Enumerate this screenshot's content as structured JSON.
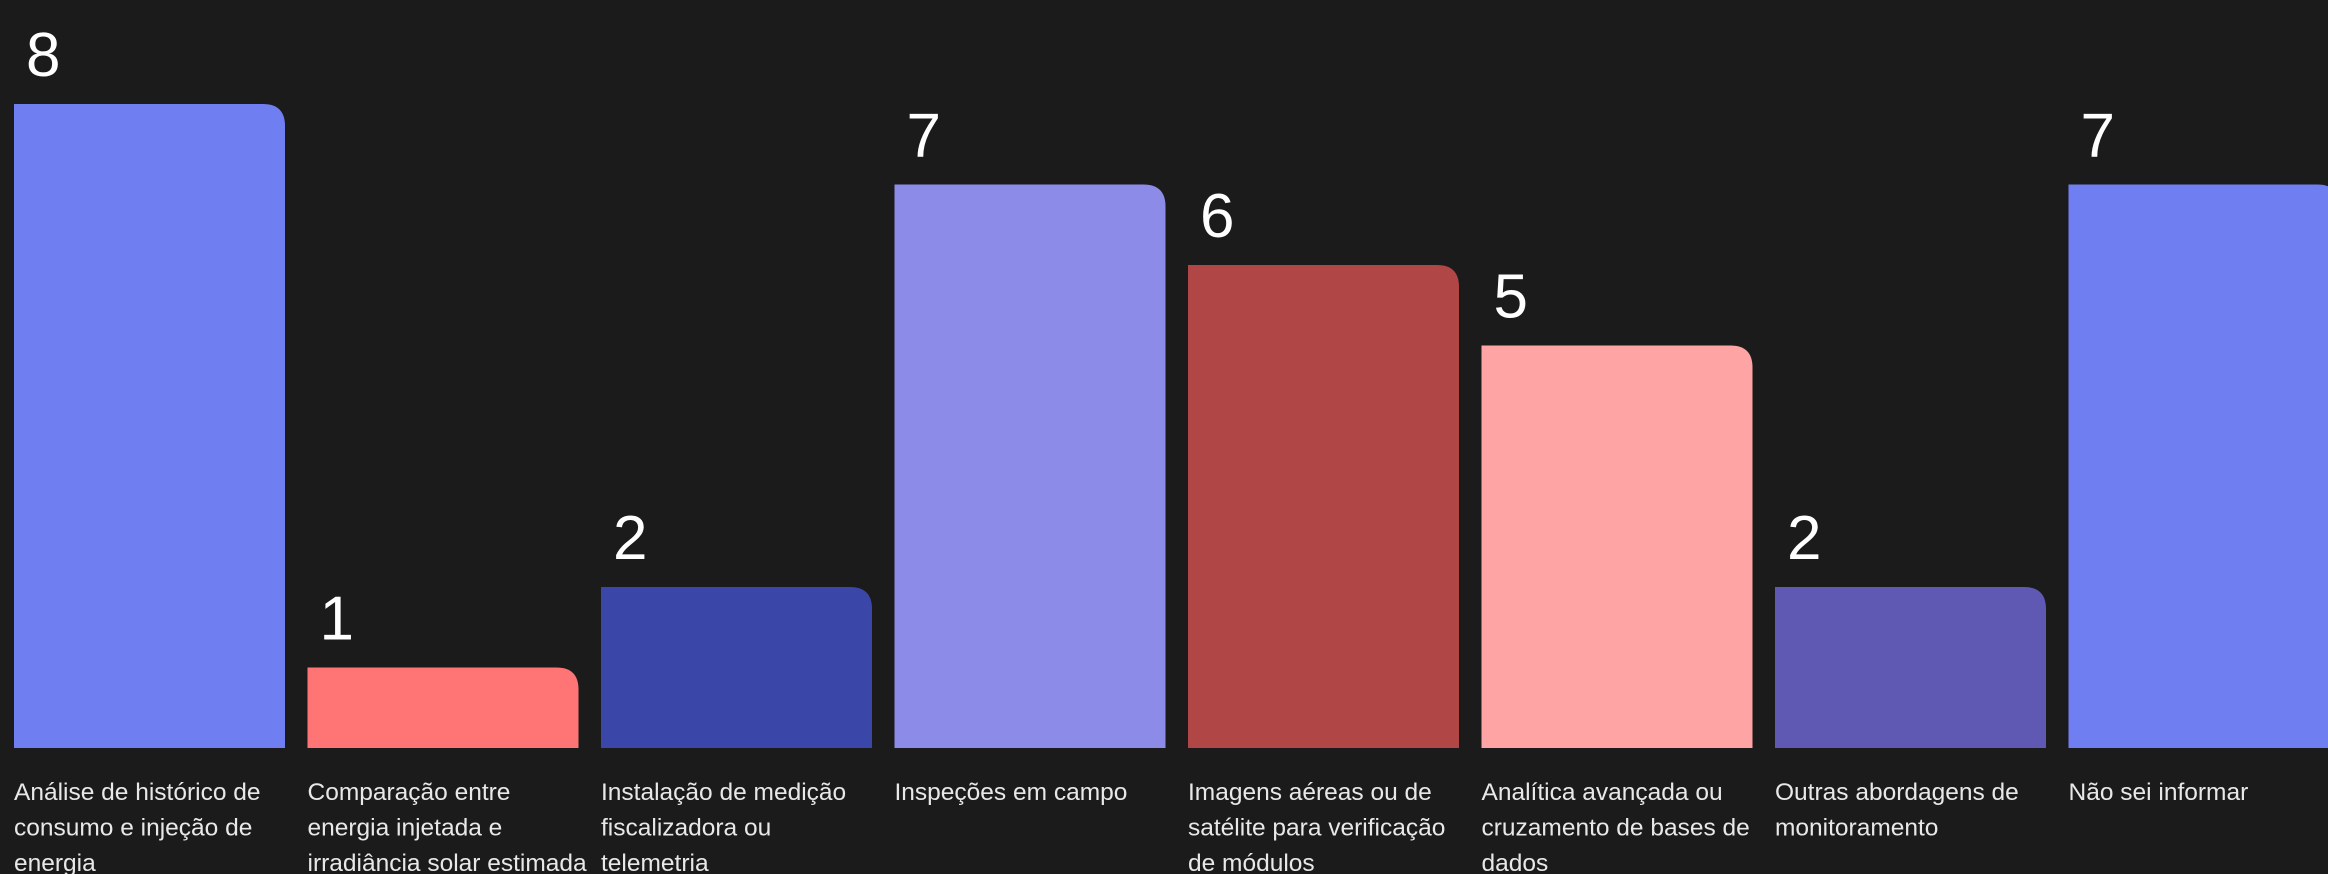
{
  "chart_data": {
    "type": "bar",
    "categories": [
      "Análise de histórico de consumo e injeção de energia",
      "Comparação entre energia injetada e irradiância solar estimada",
      "Instalação de medição fiscalizadora ou telemetria",
      "Inspeções em campo",
      "Imagens aéreas ou de satélite para verificação de módulos",
      "Analítica avançada ou cruzamento de bases de dados",
      "Outras abordagens de monitoramento",
      "Não sei informar"
    ],
    "category_label_lines": [
      [
        "Análise de histórico de",
        "consumo e injeção de",
        "energia"
      ],
      [
        "Comparação entre",
        "energia injetada e",
        "irradiância solar estimada"
      ],
      [
        "Instalação de medição",
        "fiscalizadora ou",
        "telemetria"
      ],
      [
        "Inspeções em campo"
      ],
      [
        "Imagens aéreas ou de",
        "satélite para verificação",
        "de módulos"
      ],
      [
        "Analítica avançada ou",
        "cruzamento de bases de",
        "dados"
      ],
      [
        "Outras abordagens de",
        "monitoramento"
      ],
      [
        "Não sei informar"
      ]
    ],
    "values": [
      8,
      1,
      2,
      7,
      6,
      5,
      2,
      7
    ],
    "value_labels": [
      "8",
      "1",
      "2",
      "7",
      "6",
      "5",
      "2",
      "7"
    ],
    "colors": [
      "#6f7ef0",
      "#ff7474",
      "#3a47a8",
      "#8c8be8",
      "#b14646",
      "#ffa4a4",
      "#5f59b4",
      "#6f7ef0"
    ],
    "ylim": [
      0,
      8
    ],
    "grid": false,
    "legend": "none",
    "title": "",
    "xlabel": "",
    "ylabel": ""
  }
}
